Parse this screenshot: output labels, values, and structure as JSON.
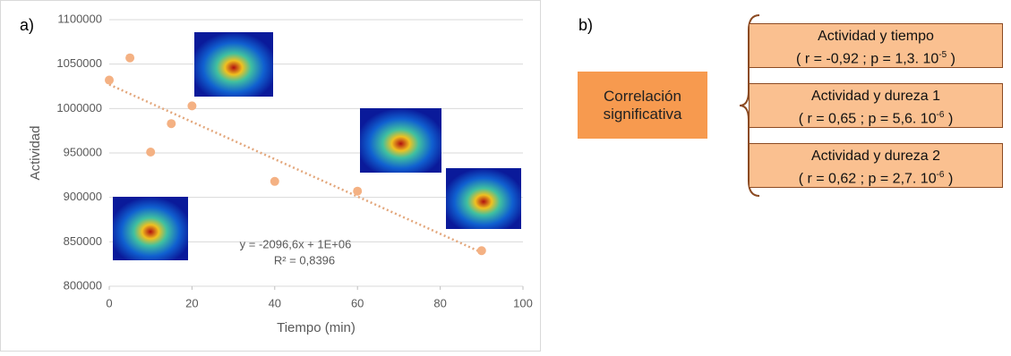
{
  "chart_data": {
    "type": "scatter",
    "panel_label": "a)",
    "x_label": "Tiempo (min)",
    "y_label": "Actividad",
    "x": [
      0,
      5,
      10,
      15,
      20,
      40,
      60,
      90
    ],
    "values": [
      1032000,
      1057000,
      951000,
      983000,
      1003000,
      918000,
      907000,
      840000
    ],
    "color": "#f4b183",
    "trendline": {
      "x": [
        0,
        90
      ],
      "values": [
        1027000,
        838000
      ],
      "color": "#e3a77c"
    },
    "annotations": [
      "y = -2096,6x + 1E+06",
      "R² = 0,8396"
    ],
    "xlim": [
      0,
      100
    ],
    "xticks": [
      0,
      20,
      40,
      60,
      80,
      100
    ],
    "ylim": [
      800000,
      1100000
    ],
    "yticks": [
      800000,
      850000,
      900000,
      950000,
      1000000,
      1050000,
      1100000
    ],
    "grid": true
  },
  "diagram": {
    "panel_label": "b)",
    "source": "Correlación significativa",
    "boxes": [
      {
        "title": "Actividad y tiempo",
        "stats_prefix": "( r = -0,92 ; p = 1,3. 10",
        "exponent": "-5",
        "stats_suffix": " )"
      },
      {
        "title": "Actividad y dureza 1",
        "stats_prefix": "( r = 0,65 ; p = 5,6. 10",
        "exponent": "-6",
        "stats_suffix": " )"
      },
      {
        "title": "Actividad y dureza 2",
        "stats_prefix": "( r = 0,62 ; p = 2,7. 10",
        "exponent": "-6",
        "stats_suffix": " )"
      }
    ]
  }
}
